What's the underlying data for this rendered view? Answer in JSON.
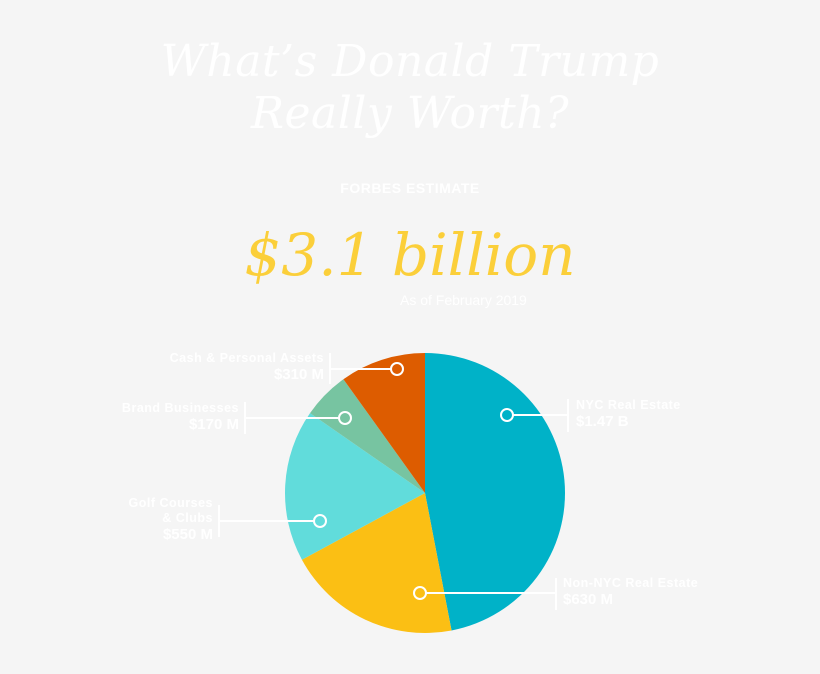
{
  "header": {
    "title_line1": "What’s Donald Trump",
    "title_line2": "Really Worth?",
    "eyebrow": "FORBES ESTIMATE",
    "headline": "$3.1 billion",
    "as_of": "As of February 2019"
  },
  "colors": {
    "background": "#f5f5f5",
    "headline": "#fbcf3a",
    "nyc_real_estate": "#00b2c8",
    "non_nyc_real_estate": "#fbbf14",
    "golf_courses": "#61dcdb",
    "brand_businesses": "#77c4a1",
    "cash_personal_assets": "#dd5c00"
  },
  "labels": {
    "nyc": {
      "name": "NYC Real Estate",
      "value": "$1.47 B"
    },
    "non_nyc": {
      "name": "Non-NYC Real Estate",
      "value": "$630 M"
    },
    "golf_line1": "Golf Courses",
    "golf_line2": "& Clubs",
    "golf_value": "$550 M",
    "brand": {
      "name": "Brand Businesses",
      "value": "$170 M"
    },
    "cash": {
      "name": "Cash & Personal Assets",
      "value": "$310 M"
    }
  },
  "chart_data": {
    "type": "pie",
    "title": "What’s Donald Trump Really Worth?",
    "subtitle": "FORBES ESTIMATE — $3.1 billion, As of February 2019",
    "unit": "USD millions",
    "categories": [
      "NYC Real Estate",
      "Non-NYC Real Estate",
      "Golf Courses & Clubs",
      "Brand Businesses",
      "Cash & Personal Assets"
    ],
    "values": [
      1470,
      630,
      550,
      170,
      310
    ],
    "value_labels": [
      "$1.47 B",
      "$630 M",
      "$550 M",
      "$170 M",
      "$310 M"
    ],
    "start_angle": "12 o'clock, clockwise",
    "legend": "callout labels with leader lines"
  }
}
